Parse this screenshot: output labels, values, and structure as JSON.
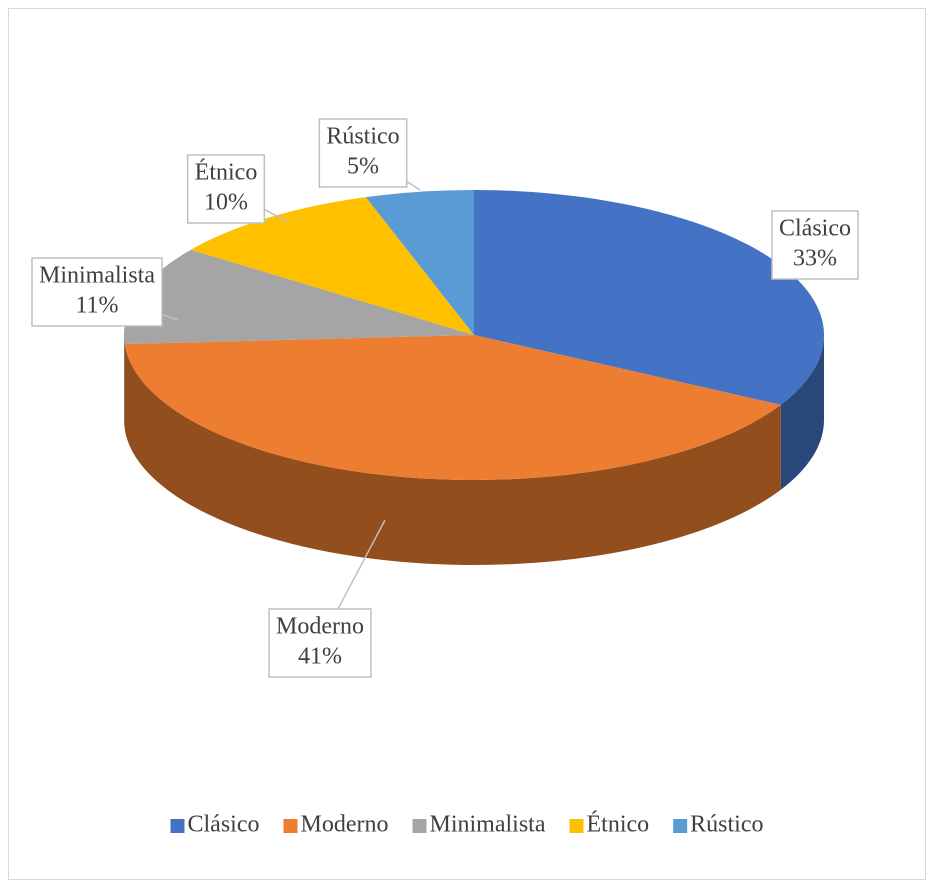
{
  "chart_data": {
    "type": "pie",
    "three_d": true,
    "categories": [
      "Clásico",
      "Moderno",
      "Minimalista",
      "Étnico",
      "Rústico"
    ],
    "values": [
      33,
      41,
      11,
      10,
      5
    ],
    "value_labels": [
      "33%",
      "41%",
      "11%",
      "10%",
      "5%"
    ],
    "colors": [
      "#4472c4",
      "#ed7d31",
      "#a5a5a5",
      "#ffc000",
      "#5b9bd5"
    ],
    "legend": "bottom"
  }
}
